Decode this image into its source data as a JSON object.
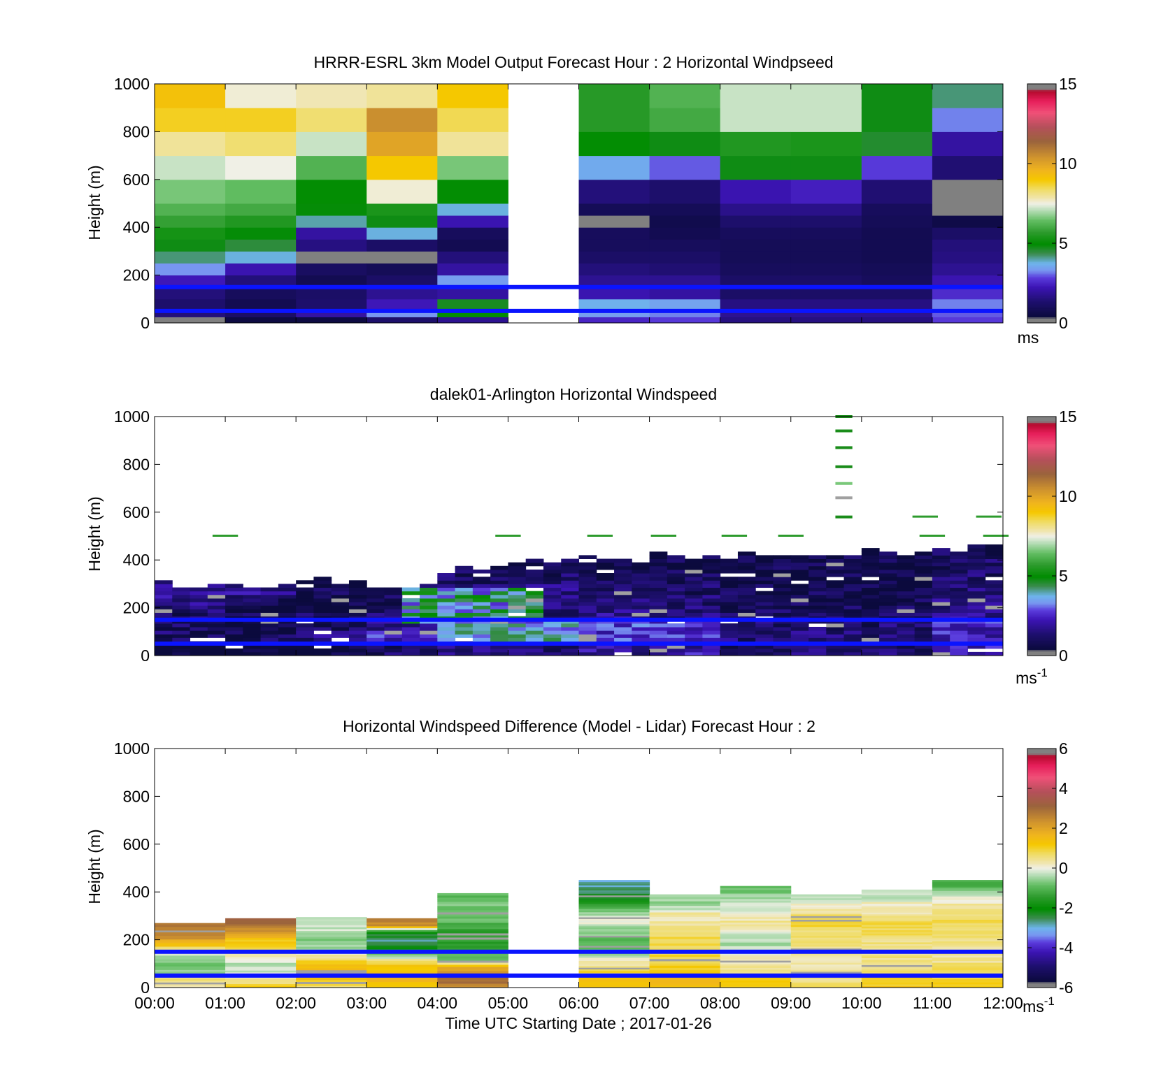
{
  "figure": {
    "xlabel": "Time UTC  Starting Date ; 2017-01-26",
    "xticks": [
      "00:00",
      "01:00",
      "02:00",
      "03:00",
      "04:00",
      "05:00",
      "06:00",
      "07:00",
      "08:00",
      "09:00",
      "10:00",
      "11:00",
      "12:00"
    ],
    "reference_line_color": "#0a14ff",
    "reference_heights_m": [
      50,
      150
    ]
  },
  "chart_data": [
    {
      "type": "heatmap",
      "title": "HRRR-ESRL 3km Model Output   Forecast Hour : 2 Horizontal Windpseed",
      "ylabel": "Height (m)",
      "ylim": [
        0,
        1000
      ],
      "yticks": [
        "0",
        "200",
        "400",
        "600",
        "800",
        "1000"
      ],
      "xlim": [
        0,
        12
      ],
      "colorbar": {
        "min": 0,
        "max": 15,
        "ticks": [
          "0",
          "5",
          "10",
          "15"
        ],
        "unit": "ms",
        "unit_exp": ""
      },
      "grid": false,
      "missing_hours": [
        5
      ],
      "levels_m": [
        0,
        25,
        50,
        100,
        150,
        200,
        250,
        300,
        350,
        400,
        450,
        500,
        600,
        700,
        800,
        900,
        1000
      ],
      "hourly_speed_profiles": [
        [
          0.3,
          1.5,
          1.3,
          1.5,
          2.3,
          3.3,
          4.2,
          4.8,
          5.3,
          5.8,
          6.2,
          6.6,
          7.2,
          8.0,
          8.8,
          9.2
        ],
        [
          0.5,
          1.2,
          0.8,
          1.0,
          1.5,
          2.2,
          3.8,
          4.5,
          4.9,
          5.5,
          6.0,
          6.4,
          7.5,
          8.3,
          8.8,
          7.6
        ],
        [
          0.5,
          2.0,
          1.3,
          1.2,
          0.8,
          1.1,
          0.2,
          1.6,
          2.0,
          4.0,
          4.9,
          5.0,
          6.2,
          7.2,
          8.3,
          7.8
        ],
        [
          1.3,
          3.3,
          2.3,
          1.8,
          1.2,
          0.9,
          0.2,
          1.2,
          3.8,
          4.8,
          5.4,
          7.6,
          9.0,
          10.0,
          10.5,
          8.0
        ],
        [
          1.8,
          5.0,
          4.7,
          2.0,
          3.4,
          2.0,
          1.5,
          0.8,
          1.0,
          2.2,
          3.8,
          5.0,
          6.6,
          8.0,
          8.5,
          9.0
        ],
        null,
        [
          2.5,
          3.4,
          3.7,
          2.2,
          1.8,
          1.5,
          1.2,
          1.0,
          1.0,
          0.2,
          0.9,
          1.5,
          3.6,
          5.0,
          5.6,
          5.6
        ],
        [
          2.8,
          3.2,
          3.5,
          2.0,
          1.8,
          1.4,
          1.2,
          1.0,
          0.8,
          0.7,
          0.9,
          1.3,
          3.0,
          4.8,
          6.0,
          6.2
        ],
        [
          1.6,
          1.8,
          1.6,
          1.2,
          1.2,
          1.0,
          0.9,
          0.9,
          1.0,
          1.3,
          1.7,
          2.2,
          4.8,
          5.5,
          7.2,
          7.2
        ],
        [
          1.6,
          1.8,
          1.6,
          1.2,
          1.2,
          1.0,
          0.9,
          0.9,
          1.0,
          1.3,
          1.7,
          2.4,
          4.8,
          5.4,
          7.2,
          7.2
        ],
        [
          1.6,
          1.8,
          1.6,
          1.2,
          1.0,
          0.9,
          0.8,
          0.8,
          0.8,
          0.9,
          1.0,
          1.4,
          2.8,
          4.6,
          4.8,
          4.8
        ],
        [
          2.8,
          3.0,
          3.2,
          2.6,
          2.2,
          1.8,
          1.6,
          1.5,
          1.2,
          0.6,
          0.3,
          0.1,
          1.4,
          2.0,
          3.2,
          4.2
        ]
      ]
    },
    {
      "type": "heatmap",
      "title": "dalek01-Arlington  Horizontal Windspeed",
      "ylabel": "Height (m)",
      "ylim": [
        0,
        1000
      ],
      "yticks": [
        "0",
        "200",
        "400",
        "600",
        "800",
        "1000"
      ],
      "xlim": [
        0,
        12
      ],
      "colorbar": {
        "min": 0,
        "max": 15,
        "ticks": [
          "0",
          "5",
          "10",
          "15"
        ],
        "unit": "ms",
        "unit_exp": "-1"
      },
      "grid": false,
      "data_top_height_m": [
        290,
        295,
        300,
        280,
        360,
        390,
        400,
        410,
        410,
        420,
        430,
        450
      ],
      "upper_level_streak_heights_m": [
        1000,
        940,
        870,
        790,
        720,
        660,
        580
      ],
      "upper_level_streak_time_h": 9.75
    },
    {
      "type": "heatmap",
      "title": "Horizontal Windspeed Difference (Model - Lidar) Forecast Hour : 2",
      "ylabel": "Height (m)",
      "ylim": [
        0,
        1000
      ],
      "yticks": [
        "0",
        "200",
        "400",
        "600",
        "800",
        "1000"
      ],
      "xlim": [
        0,
        12
      ],
      "colorbar": {
        "min": -6,
        "max": 6,
        "ticks": [
          "-6",
          "-4",
          "-2",
          "0",
          "2",
          "4",
          "6"
        ],
        "unit": "ms",
        "unit_exp": "-1"
      },
      "grid": false,
      "missing_hours": [
        5
      ],
      "top_height_m": [
        270,
        290,
        295,
        290,
        395,
        null,
        450,
        390,
        425,
        390,
        410,
        450
      ],
      "hourly_difference_profiles": [
        [
          0.5,
          0.6,
          -0.5,
          -0.8,
          -0.6,
          0.3,
          1.5,
          2.5,
          2.8
        ],
        [
          1.0,
          0.4,
          -0.2,
          -0.4,
          0.2,
          1.0,
          1.2,
          2.0,
          3.0
        ],
        [
          0.8,
          1.2,
          1.5,
          1.3,
          0.2,
          -0.5,
          -0.8,
          -0.3,
          -0.3
        ],
        [
          1.2,
          1.5,
          1.5,
          1.0,
          -0.5,
          -2.0,
          -2.6,
          -2.2,
          2.5
        ],
        [
          2.5,
          3.0,
          2.5,
          2.0,
          -0.5,
          -1.0,
          -1.2,
          -1.5,
          -1.4,
          -1.3,
          -1.0,
          -0.8,
          -0.9,
          -0.8,
          -0.9
        ],
        null,
        [
          1.2,
          1.3,
          1.0,
          0.6,
          0.2,
          -0.5,
          -0.8,
          -1.0,
          -0.6,
          -0.4,
          0.2,
          -0.6,
          -1.2,
          -2.0,
          -2.4,
          -2.8
        ],
        [
          1.5,
          1.6,
          1.3,
          1.0,
          0.9,
          0.8,
          0.8,
          0.9,
          0.6,
          0.4,
          0.2,
          0.3,
          -0.4,
          -0.5
        ],
        [
          1.2,
          1.0,
          0.6,
          0.4,
          0.2,
          -0.2,
          -0.4,
          -0.3,
          0.2,
          0.4,
          0.2,
          -0.2,
          -0.3,
          -0.8
        ],
        [
          0.8,
          0.6,
          0.4,
          0.2,
          0.2,
          0.4,
          0.6,
          0.6,
          0.8,
          1.0,
          0.6,
          0.3,
          -0.2
        ],
        [
          1.2,
          1.1,
          0.9,
          0.6,
          0.5,
          0.4,
          0.5,
          0.6,
          0.8,
          0.9,
          0.5,
          0.2,
          0.1,
          -0.3
        ],
        [
          1.0,
          0.9,
          0.8,
          0.6,
          0.4,
          0.4,
          0.5,
          0.6,
          0.7,
          0.8,
          0.6,
          0.4,
          0.2,
          -0.5,
          -1.0
        ]
      ]
    }
  ]
}
